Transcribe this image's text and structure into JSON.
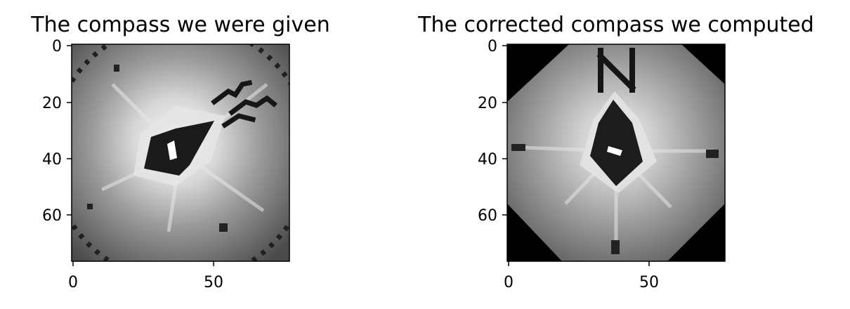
{
  "figure": {
    "background": "#ffffff"
  },
  "chart_data": [
    {
      "type": "heatmap",
      "title": "The compass we were given",
      "colormap": "gray",
      "image_size": [
        77,
        77
      ],
      "xlim": [
        0,
        76
      ],
      "ylim": [
        76,
        0
      ],
      "x_ticks": [
        0,
        50
      ],
      "y_ticks": [
        0,
        20,
        40,
        60
      ],
      "x_tick_labels": [
        "0",
        "50"
      ],
      "y_tick_labels": [
        "0",
        "20",
        "40",
        "60"
      ],
      "grid": false,
      "legend": "none",
      "content": "Pixelated grayscale compass image rotated diagonally; dark needle pointing toward the upper right, dark 'N' mark in the upper right, dark circular rim near corners."
    },
    {
      "type": "heatmap",
      "title": "The corrected compass we computed",
      "colormap": "gray",
      "image_size": [
        77,
        77
      ],
      "xlim": [
        0,
        76
      ],
      "ylim": [
        76,
        0
      ],
      "x_ticks": [
        0,
        50
      ],
      "y_ticks": [
        0,
        20,
        40,
        60
      ],
      "x_tick_labels": [
        "0",
        "50"
      ],
      "y_tick_labels": [
        "0",
        "20",
        "40",
        "60"
      ],
      "grid": false,
      "legend": "none",
      "content": "Pixelated grayscale compass image rotated upright inside a black octagonal border; dark needle pointing up, dark 'N' mark at the top center."
    }
  ]
}
